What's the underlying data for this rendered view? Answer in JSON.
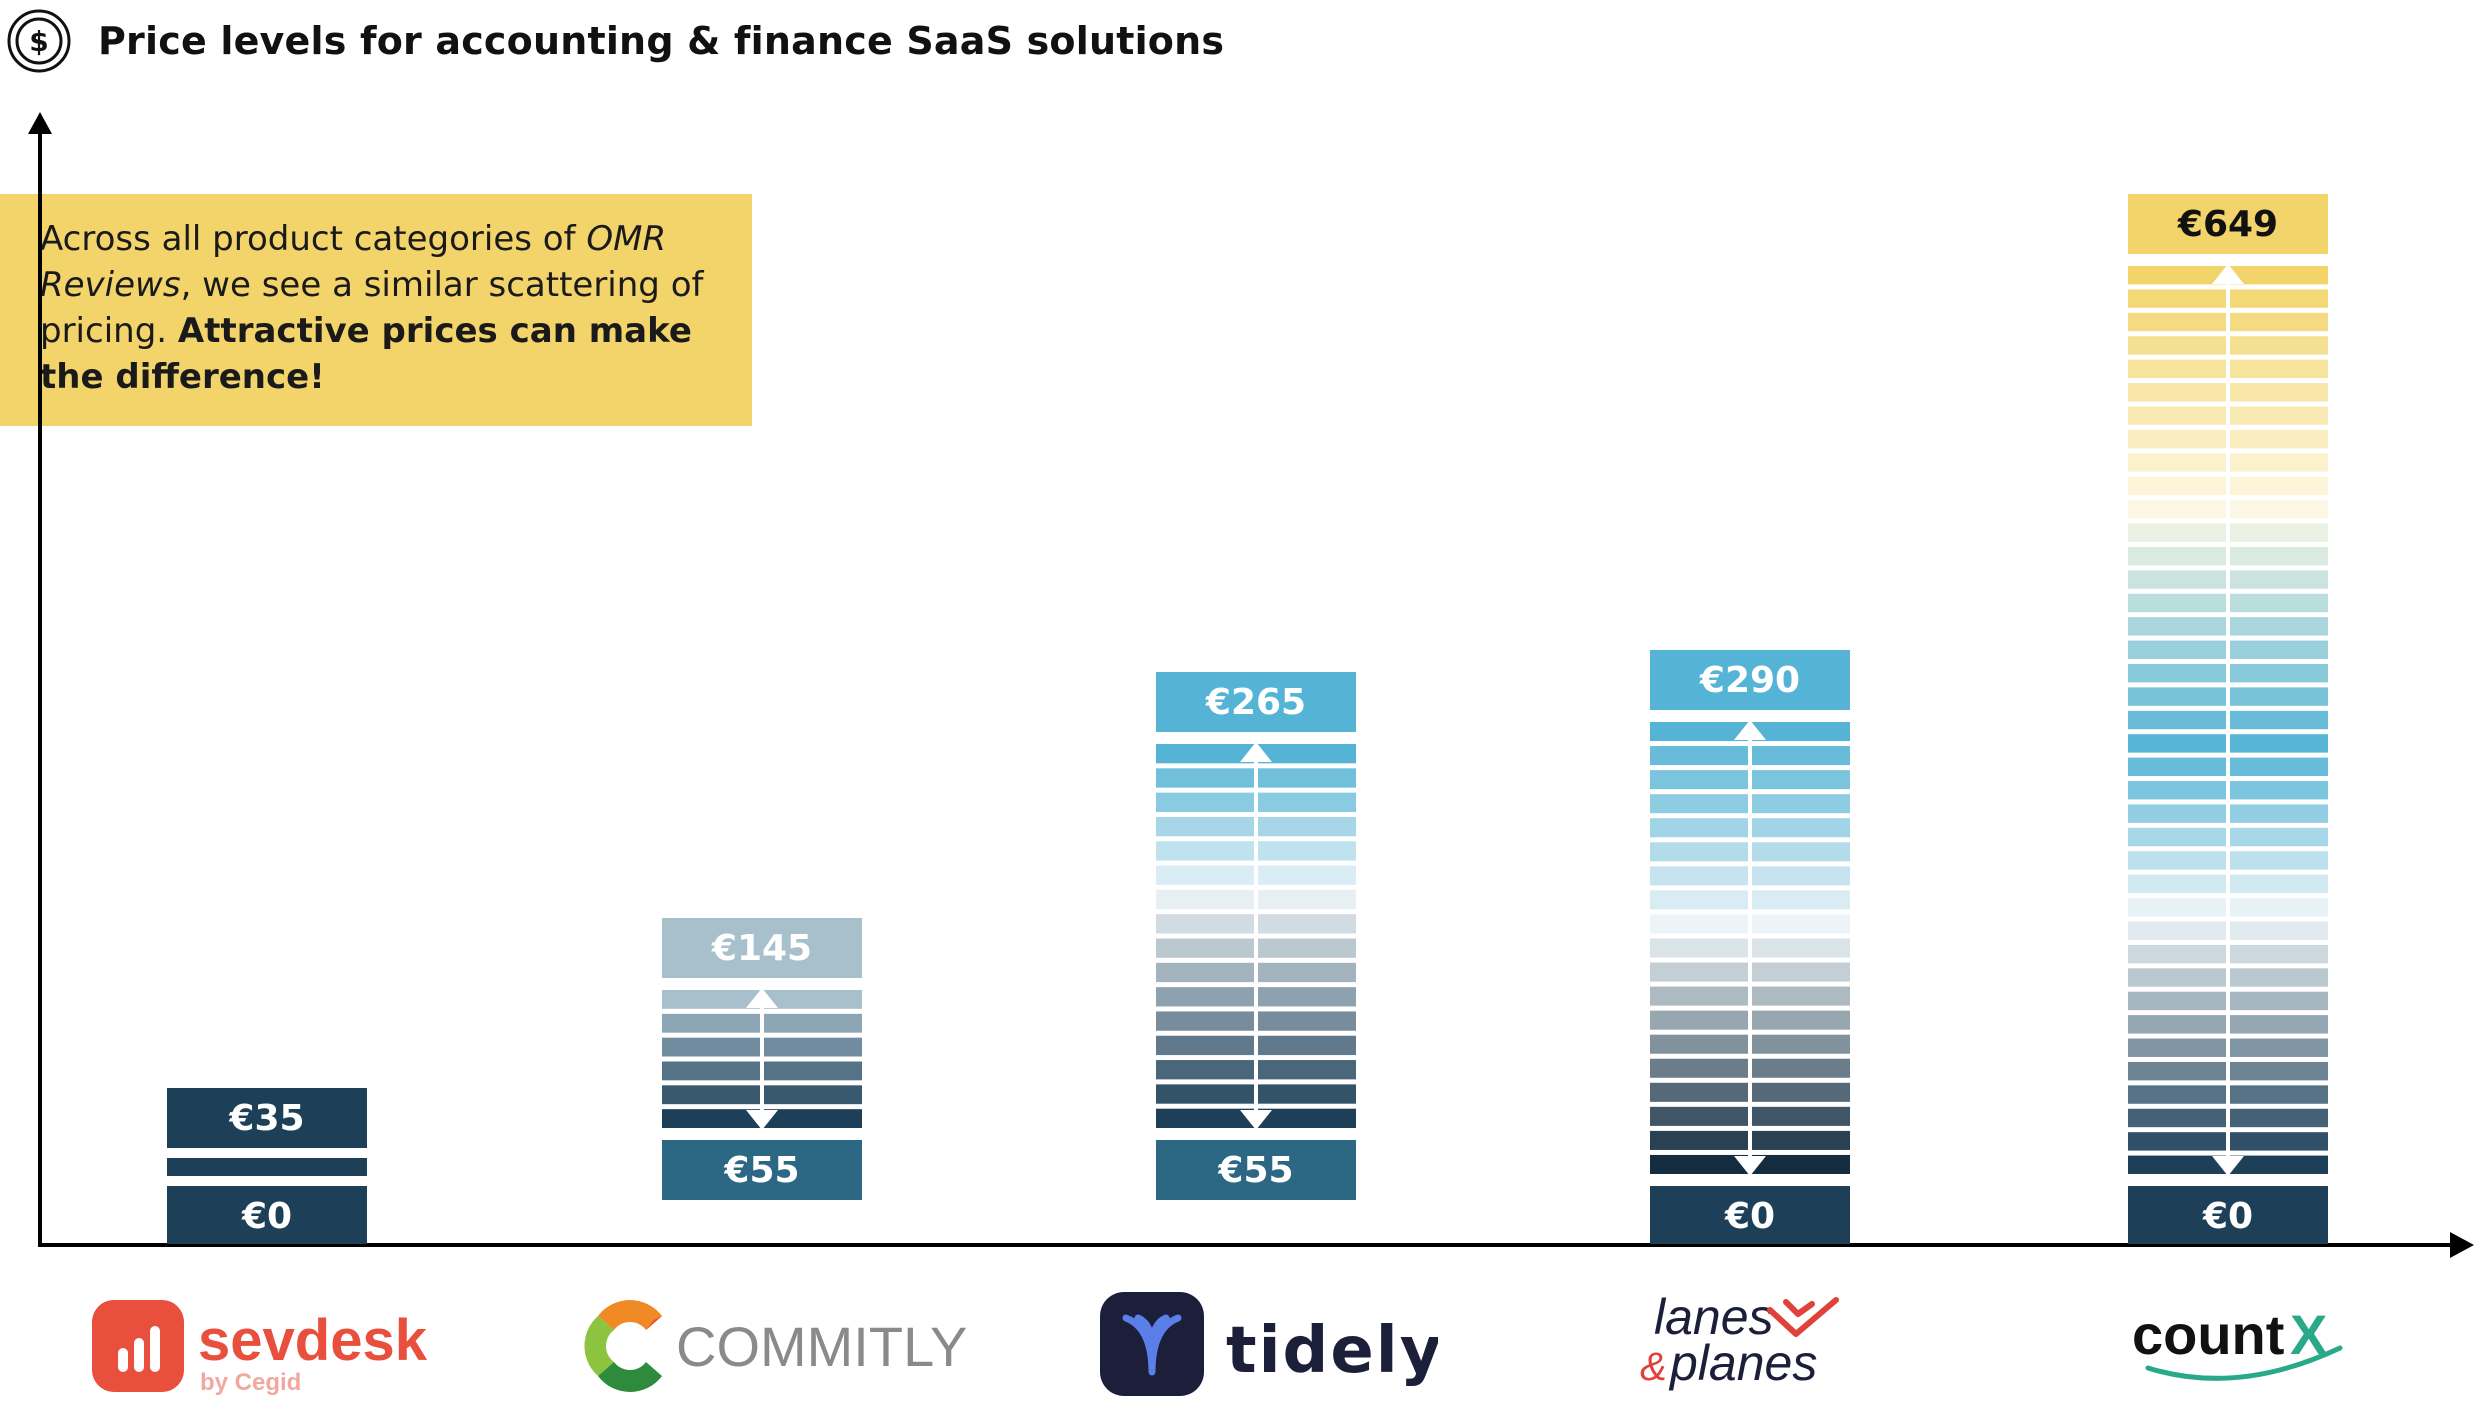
{
  "header": {
    "title": "Price levels for accounting & finance SaaS solutions",
    "icon": "dollar-coin-icon"
  },
  "callout": {
    "line_normal_1": "Across all product categories of ",
    "line_italic": "OMR Reviews",
    "line_normal_2": ", we see a similar scattering of pricing. ",
    "line_bold": "Attractive prices can make the difference!"
  },
  "colors": {
    "dark_navy": "#1d3f58",
    "teal_dark": "#2c6783",
    "grey_blue": "#a8c0cc",
    "sky_blue": "#55b4d5",
    "yellow": "#f2d46b",
    "axis": "#000000"
  },
  "chart_data": {
    "type": "bar",
    "categories": [
      "sevdesk",
      "COMMITLY",
      "tidely",
      "lanes & planes",
      "countX"
    ],
    "series": [
      {
        "values_min": [
          0,
          55,
          55,
          0,
          0
        ],
        "values_max": [
          35,
          145,
          265,
          290,
          649
        ]
      }
    ],
    "min_labels": [
      "€0",
      "€55",
      "€55",
      "€0",
      "€0"
    ],
    "max_labels": [
      "€35",
      "€145",
      "€265",
      "€290",
      "€649"
    ]
  },
  "logos": {
    "sevdesk": {
      "name": "sevdesk",
      "sub": "by Cegid",
      "color": "#e94f3d",
      "sub_color": "#f0a89f"
    },
    "commitly": {
      "name": "COMMITLY",
      "color": "#8a8a8a"
    },
    "tidely": {
      "name": "tidely",
      "color": "#1c1f3a",
      "badge": "#1c1f3a",
      "accent": "#5b7fe8"
    },
    "lanes": {
      "line1": "lanes",
      "line2": "planes",
      "amp": "&",
      "color": "#1c1f3a",
      "accent": "#e0413b"
    },
    "countx": {
      "name": "count",
      "x": "X",
      "color": "#111111",
      "accent": "#2aa88a"
    }
  }
}
